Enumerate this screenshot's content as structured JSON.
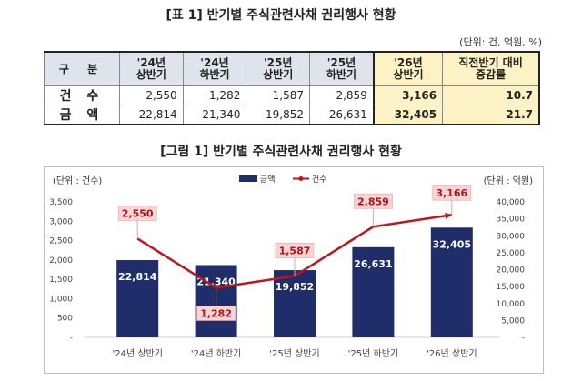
{
  "table": {
    "title": "[표 1] 반기별 주식관련사채 권리행사 현황",
    "unit_note": "(단위: 건, 억원, %)",
    "header_label": "구 분",
    "columns": [
      "'24년\n상반기",
      "'24년\n하반기",
      "'25년\n상반기",
      "'25년\n하반기",
      "'26년\n상반기",
      "직전반기 대비\n증감률"
    ],
    "rows": [
      {
        "label": "건 수",
        "values": [
          "2,550",
          "1,282",
          "1,587",
          "2,859",
          "3,166",
          "10.7"
        ]
      },
      {
        "label": "금 액",
        "values": [
          "22,814",
          "21,340",
          "19,852",
          "26,631",
          "32,405",
          "21.7"
        ]
      }
    ]
  },
  "chart": {
    "title": "[그림 1] 반기별 주식관련사채 권리행사 현황"
  },
  "chart_data": {
    "type": "bar",
    "categories": [
      "'24년 상반기",
      "'24년 하반기",
      "'25년 상반기",
      "'25년 하반기",
      "'26년 상반기"
    ],
    "series": [
      {
        "name": "금액",
        "type": "bar",
        "axis": "right",
        "values": [
          22814,
          21340,
          19852,
          26631,
          32405
        ],
        "color": "#1f2d6b"
      },
      {
        "name": "건수",
        "type": "line",
        "axis": "left",
        "values": [
          2550,
          1282,
          1587,
          2859,
          3166
        ],
        "color": "#c0151c"
      }
    ],
    "left_axis": {
      "label": "(단위 : 건수)",
      "ylim": [
        0,
        3500
      ],
      "ticks": [
        0,
        500,
        1000,
        1500,
        2000,
        2500,
        3000,
        3500
      ],
      "tick_labels": [
        "-",
        "500",
        "1,000",
        "1,500",
        "2,000",
        "2,500",
        "3,000",
        "3,500"
      ]
    },
    "right_axis": {
      "label": "(단위 : 억원)",
      "ylim": [
        0,
        40000
      ],
      "ticks": [
        0,
        5000,
        10000,
        15000,
        20000,
        25000,
        30000,
        35000,
        40000
      ],
      "tick_labels": [
        "-",
        "5,000",
        "10,000",
        "15,000",
        "20,000",
        "25,000",
        "30,000",
        "35,000",
        "40,000"
      ]
    },
    "bar_labels": [
      "22,814",
      "21,340",
      "19,852",
      "26,631",
      "32,405"
    ],
    "line_labels": [
      "2,550",
      "1,282",
      "1,587",
      "2,859",
      "3,166"
    ],
    "legend_position": "top-center",
    "grid": false
  }
}
